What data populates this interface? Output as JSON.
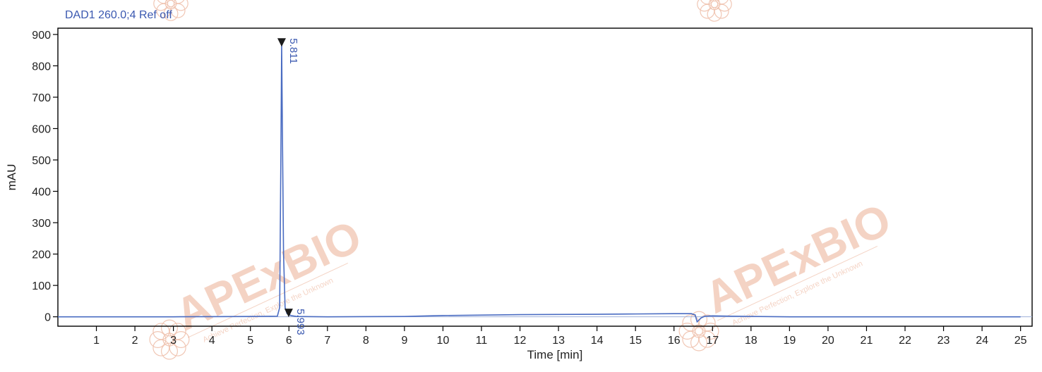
{
  "chart_data": {
    "type": "line",
    "title": "DAD1 260.0;4 Ref off",
    "xlabel": "Time [min]",
    "ylabel": "mAU",
    "xlim": [
      0,
      25.3
    ],
    "ylim": [
      -30,
      920
    ],
    "x_ticks": [
      1,
      2,
      3,
      4,
      5,
      6,
      7,
      8,
      9,
      10,
      11,
      12,
      13,
      14,
      15,
      16,
      17,
      18,
      19,
      20,
      21,
      22,
      23,
      24,
      25
    ],
    "y_ticks": [
      0,
      100,
      200,
      300,
      400,
      500,
      600,
      700,
      800,
      900
    ],
    "grid": false,
    "series": [
      {
        "x": [
          0,
          3,
          5,
          5.7,
          5.76,
          5.79,
          5.811,
          5.83,
          5.86,
          5.9,
          5.95,
          5.993,
          6.05,
          6.2,
          7,
          9,
          10,
          12,
          14,
          15,
          16,
          16.45,
          16.55,
          16.6,
          16.7,
          16.8,
          17,
          17.5,
          19,
          22,
          25
        ],
        "y": [
          0,
          0,
          1,
          2,
          30,
          500,
          870,
          600,
          200,
          30,
          10,
          8,
          4,
          1,
          0,
          1,
          4,
          7,
          8,
          9,
          10,
          10,
          6,
          -16,
          -4,
          2,
          3,
          2,
          0,
          0,
          0
        ],
        "color": "#4a6cc2"
      }
    ],
    "peaks": [
      {
        "label": "5.811",
        "x": 5.811,
        "y": 870
      },
      {
        "label": "5.993",
        "x": 5.993,
        "y": 8
      }
    ],
    "colors": {
      "trace": "#4a6cc2",
      "label": "#3a58b0",
      "axis": "#000000",
      "watermark": "#e0835a"
    }
  },
  "watermark": {
    "brand": "APExBIO",
    "slogan": "Achieve Perfection, Explore the Unknown"
  }
}
